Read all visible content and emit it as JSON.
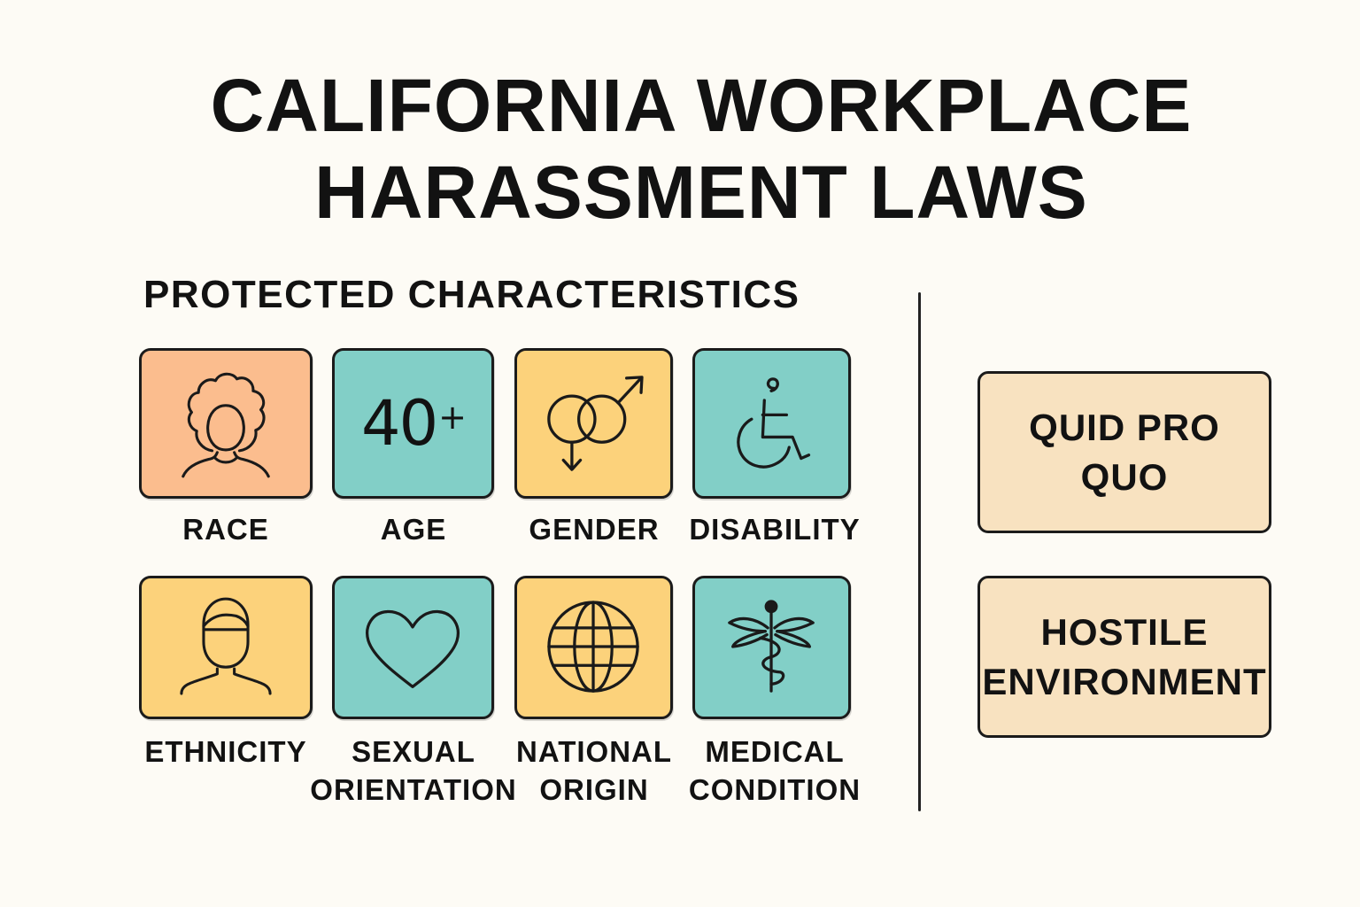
{
  "title": {
    "line1": "CALIFORNIA WORKPLACE",
    "line2": "HARASSMENT LAWS"
  },
  "protected": {
    "heading": "PROTECTED CHARACTERISTICS",
    "items": [
      {
        "label_line1": "RACE",
        "label_line2": "",
        "icon": "curly-hair-person-icon",
        "color": "#fbbd8e"
      },
      {
        "label_line1": "AGE",
        "label_line2": "",
        "icon_text": "40",
        "icon_text_suffix": "+",
        "color": "#82cfc7"
      },
      {
        "label_line1": "GENDER",
        "label_line2": "",
        "icon": "gender-symbols-icon",
        "color": "#fcd27b"
      },
      {
        "label_line1": "DISABILITY",
        "label_line2": "",
        "icon": "wheelchair-icon",
        "color": "#82cfc7"
      },
      {
        "label_line1": "ETHNICITY",
        "label_line2": "",
        "icon": "person-icon",
        "color": "#fcd27b"
      },
      {
        "label_line1": "SEXUAL",
        "label_line2": "ORIENTATION",
        "icon": "heart-icon",
        "color": "#82cfc7"
      },
      {
        "label_line1": "NATIONAL",
        "label_line2": "ORIGIN",
        "icon": "globe-icon",
        "color": "#fcd27b"
      },
      {
        "label_line1": "MEDICAL",
        "label_line2": "CONDITION",
        "icon": "caduceus-icon",
        "color": "#82cfc7"
      }
    ]
  },
  "harassment_types": [
    {
      "line1": "QUID PRO",
      "line2": "QUO",
      "color": "#f8e2c0"
    },
    {
      "line1": "HOSTILE",
      "line2": "ENVIRONMENT",
      "color": "#f8e2c0"
    }
  ]
}
